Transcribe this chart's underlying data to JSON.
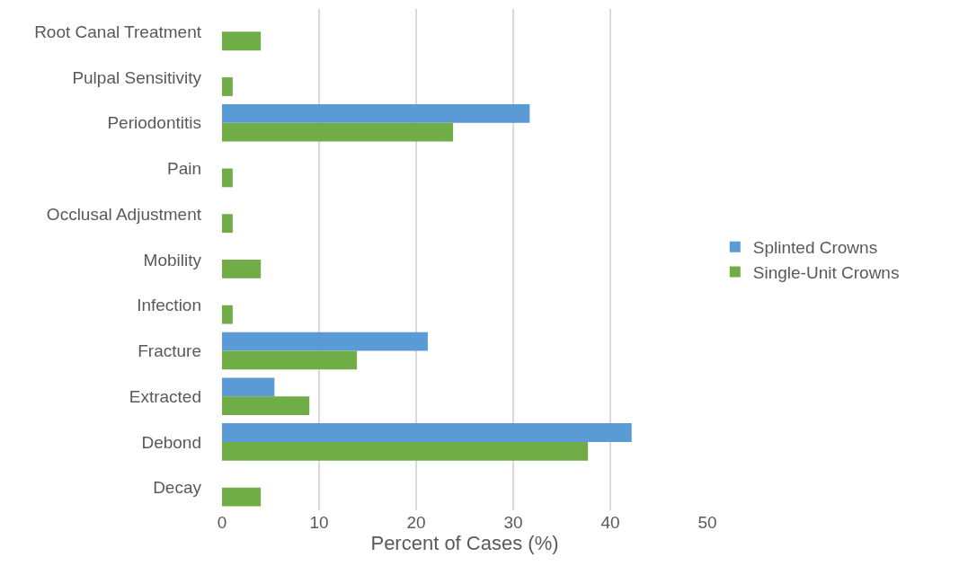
{
  "chart_data": {
    "type": "bar",
    "orientation": "horizontal",
    "xlabel": "Percent of Cases (%)",
    "categories": [
      "Root Canal Treatment",
      "Pulpal Sensitivity",
      "Periodontitis",
      "Pain",
      "Occlusal Adjustment",
      "Mobility",
      "Infection",
      "Fracture",
      "Extracted",
      "Debond",
      "Decay"
    ],
    "series": [
      {
        "name": "Splinted Crowns",
        "color": "#5b9bd5",
        "values": [
          null,
          null,
          31.7,
          null,
          null,
          null,
          null,
          21.2,
          5.4,
          42.2,
          null
        ]
      },
      {
        "name": "Single-Unit Crowns",
        "color": "#70ad47",
        "values": [
          4.0,
          1.1,
          23.8,
          1.1,
          1.1,
          4.0,
          1.1,
          13.9,
          9.0,
          37.7,
          4.0
        ]
      }
    ],
    "xlim": [
      0,
      50
    ],
    "xticks": [
      0,
      10,
      20,
      30,
      40,
      50
    ],
    "grid": "x",
    "legend": "right"
  }
}
